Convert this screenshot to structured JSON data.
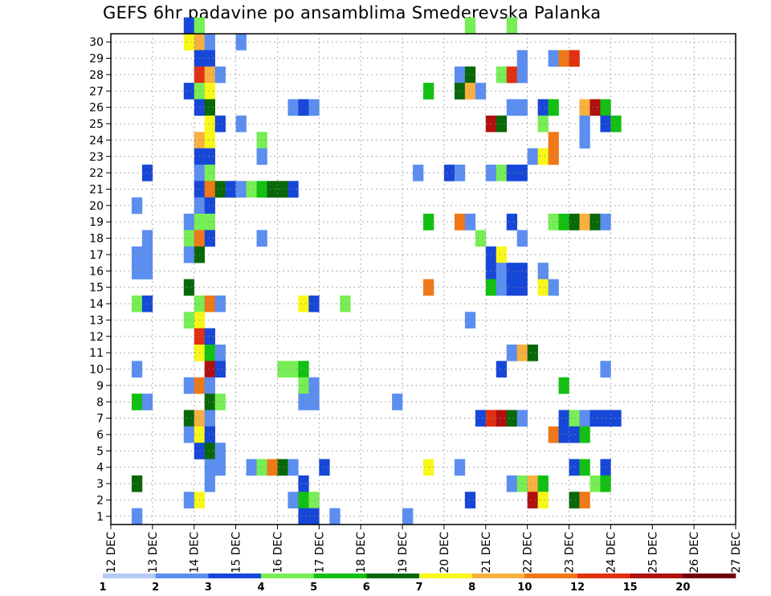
{
  "chart_data": {
    "type": "heatmap",
    "title": "GEFS 6hr padavine po ansamblima Smederevska Palanka",
    "xlabel": "",
    "ylabel": "",
    "x_tick_labels": [
      "12 DEC",
      "13 DEC",
      "14 DEC",
      "15 DEC",
      "16 DEC",
      "17 DEC",
      "18 DEC",
      "19 DEC",
      "20 DEC",
      "21 DEC",
      "22 DEC",
      "23 DEC",
      "24 DEC",
      "25 DEC",
      "26 DEC",
      "27 DEC"
    ],
    "y_tick_labels": [
      "1",
      "2",
      "3",
      "4",
      "5",
      "6",
      "7",
      "8",
      "9",
      "10",
      "11",
      "12",
      "13",
      "14",
      "15",
      "16",
      "17",
      "18",
      "19",
      "20",
      "21",
      "22",
      "23",
      "24",
      "25",
      "26",
      "27",
      "28",
      "29",
      "30"
    ],
    "x_unit": "6-hour step starting 12 DEC 00",
    "grid": true,
    "colorbar": {
      "position": "bottom",
      "tick_labels": [
        "1",
        "2",
        "3",
        "4",
        "5",
        "6",
        "7",
        "8",
        "10",
        "12",
        "15",
        "20"
      ],
      "levels": [
        1,
        2,
        3,
        4,
        5,
        6,
        7,
        8,
        10,
        12,
        15,
        20
      ],
      "colors": [
        "#b7c9f5",
        "#5b8ef0",
        "#1747d8",
        "#77ee55",
        "#11c011",
        "#086808",
        "#f8f818",
        "#f8b040",
        "#f07818",
        "#e03010",
        "#b01010",
        "#700010"
      ]
    },
    "cells": [
      [
        30,
        7,
        2
      ],
      [
        30,
        8,
        3
      ],
      [
        30,
        34,
        3
      ],
      [
        30,
        38,
        3
      ],
      [
        29,
        7,
        6
      ],
      [
        29,
        8,
        7
      ],
      [
        29,
        9,
        1
      ],
      [
        29,
        12,
        1
      ],
      [
        28,
        8,
        2
      ],
      [
        28,
        9,
        2
      ],
      [
        28,
        39,
        1
      ],
      [
        28,
        42,
        1
      ],
      [
        28,
        43,
        8
      ],
      [
        28,
        44,
        9
      ],
      [
        27,
        8,
        9
      ],
      [
        27,
        9,
        7
      ],
      [
        27,
        10,
        1
      ],
      [
        27,
        33,
        1
      ],
      [
        27,
        34,
        5
      ],
      [
        27,
        37,
        3
      ],
      [
        27,
        38,
        9
      ],
      [
        27,
        39,
        1
      ],
      [
        26,
        7,
        2
      ],
      [
        26,
        8,
        3
      ],
      [
        26,
        9,
        6
      ],
      [
        26,
        30,
        4
      ],
      [
        26,
        33,
        5
      ],
      [
        26,
        34,
        7
      ],
      [
        26,
        35,
        1
      ],
      [
        25,
        8,
        2
      ],
      [
        25,
        9,
        5
      ],
      [
        25,
        17,
        1
      ],
      [
        25,
        18,
        2
      ],
      [
        25,
        19,
        1
      ],
      [
        25,
        38,
        1
      ],
      [
        25,
        39,
        1
      ],
      [
        25,
        41,
        2
      ],
      [
        25,
        42,
        4
      ],
      [
        25,
        45,
        7
      ],
      [
        25,
        46,
        10
      ],
      [
        25,
        47,
        4
      ],
      [
        24,
        9,
        6
      ],
      [
        24,
        10,
        2
      ],
      [
        24,
        12,
        1
      ],
      [
        24,
        36,
        10
      ],
      [
        24,
        37,
        5
      ],
      [
        24,
        41,
        3
      ],
      [
        24,
        45,
        1
      ],
      [
        24,
        47,
        2
      ],
      [
        24,
        48,
        4
      ],
      [
        23,
        8,
        7
      ],
      [
        23,
        9,
        6
      ],
      [
        23,
        14,
        3
      ],
      [
        23,
        42,
        8
      ],
      [
        23,
        45,
        1
      ],
      [
        22,
        8,
        2
      ],
      [
        22,
        9,
        2
      ],
      [
        22,
        14,
        1
      ],
      [
        22,
        40,
        1
      ],
      [
        22,
        41,
        6
      ],
      [
        22,
        42,
        8
      ],
      [
        21,
        3,
        2
      ],
      [
        21,
        8,
        1
      ],
      [
        21,
        9,
        3
      ],
      [
        21,
        29,
        1
      ],
      [
        21,
        32,
        2
      ],
      [
        21,
        33,
        1
      ],
      [
        21,
        36,
        1
      ],
      [
        21,
        37,
        3
      ],
      [
        21,
        38,
        2
      ],
      [
        21,
        39,
        2
      ],
      [
        20,
        8,
        2
      ],
      [
        20,
        9,
        8
      ],
      [
        20,
        10,
        5
      ],
      [
        20,
        11,
        2
      ],
      [
        20,
        12,
        1
      ],
      [
        20,
        13,
        3
      ],
      [
        20,
        14,
        4
      ],
      [
        20,
        15,
        5
      ],
      [
        20,
        16,
        5
      ],
      [
        20,
        17,
        2
      ],
      [
        19,
        2,
        1
      ],
      [
        19,
        8,
        1
      ],
      [
        19,
        9,
        2
      ],
      [
        18,
        7,
        1
      ],
      [
        18,
        8,
        3
      ],
      [
        18,
        9,
        3
      ],
      [
        18,
        30,
        4
      ],
      [
        18,
        33,
        8
      ],
      [
        18,
        34,
        1
      ],
      [
        18,
        38,
        2
      ],
      [
        18,
        42,
        3
      ],
      [
        18,
        43,
        4
      ],
      [
        18,
        44,
        5
      ],
      [
        18,
        45,
        7
      ],
      [
        18,
        46,
        5
      ],
      [
        18,
        47,
        1
      ],
      [
        17,
        3,
        1
      ],
      [
        17,
        7,
        3
      ],
      [
        17,
        8,
        8
      ],
      [
        17,
        9,
        2
      ],
      [
        17,
        14,
        1
      ],
      [
        17,
        35,
        3
      ],
      [
        17,
        39,
        1
      ],
      [
        16,
        2,
        1
      ],
      [
        16,
        3,
        1
      ],
      [
        16,
        7,
        1
      ],
      [
        16,
        8,
        5
      ],
      [
        16,
        36,
        2
      ],
      [
        16,
        37,
        6
      ],
      [
        15,
        2,
        1
      ],
      [
        15,
        3,
        1
      ],
      [
        15,
        36,
        2
      ],
      [
        15,
        37,
        1
      ],
      [
        15,
        38,
        2
      ],
      [
        15,
        39,
        2
      ],
      [
        15,
        41,
        1
      ],
      [
        14,
        7,
        5
      ],
      [
        14,
        30,
        8
      ],
      [
        14,
        36,
        4
      ],
      [
        14,
        37,
        1
      ],
      [
        14,
        38,
        2
      ],
      [
        14,
        39,
        2
      ],
      [
        14,
        41,
        6
      ],
      [
        14,
        42,
        1
      ],
      [
        13,
        2,
        3
      ],
      [
        13,
        3,
        2
      ],
      [
        13,
        8,
        3
      ],
      [
        13,
        9,
        8
      ],
      [
        13,
        10,
        1
      ],
      [
        13,
        18,
        6
      ],
      [
        13,
        19,
        2
      ],
      [
        13,
        22,
        3
      ],
      [
        12,
        7,
        3
      ],
      [
        12,
        8,
        6
      ],
      [
        12,
        34,
        1
      ],
      [
        11,
        8,
        9
      ],
      [
        11,
        9,
        2
      ],
      [
        10,
        8,
        6
      ],
      [
        10,
        9,
        4
      ],
      [
        10,
        10,
        1
      ],
      [
        10,
        38,
        1
      ],
      [
        10,
        39,
        7
      ],
      [
        10,
        40,
        5
      ],
      [
        9,
        2,
        1
      ],
      [
        9,
        9,
        10
      ],
      [
        9,
        10,
        2
      ],
      [
        9,
        16,
        3
      ],
      [
        9,
        17,
        3
      ],
      [
        9,
        18,
        4
      ],
      [
        9,
        37,
        2
      ],
      [
        9,
        47,
        1
      ],
      [
        8,
        7,
        1
      ],
      [
        8,
        8,
        8
      ],
      [
        8,
        9,
        1
      ],
      [
        8,
        18,
        3
      ],
      [
        8,
        19,
        1
      ],
      [
        8,
        43,
        4
      ],
      [
        7,
        2,
        4
      ],
      [
        7,
        3,
        1
      ],
      [
        7,
        9,
        5
      ],
      [
        7,
        10,
        3
      ],
      [
        7,
        18,
        1
      ],
      [
        7,
        19,
        1
      ],
      [
        7,
        27,
        1
      ],
      [
        6,
        7,
        5
      ],
      [
        6,
        8,
        7
      ],
      [
        6,
        9,
        1
      ],
      [
        6,
        35,
        2
      ],
      [
        6,
        36,
        9
      ],
      [
        6,
        37,
        10
      ],
      [
        6,
        38,
        5
      ],
      [
        6,
        39,
        1
      ],
      [
        6,
        43,
        2
      ],
      [
        6,
        44,
        3
      ],
      [
        6,
        45,
        1
      ],
      [
        6,
        46,
        2
      ],
      [
        6,
        47,
        2
      ],
      [
        6,
        48,
        2
      ],
      [
        5,
        7,
        1
      ],
      [
        5,
        8,
        6
      ],
      [
        5,
        9,
        2
      ],
      [
        5,
        42,
        8
      ],
      [
        5,
        43,
        2
      ],
      [
        5,
        44,
        2
      ],
      [
        5,
        45,
        4
      ],
      [
        4,
        8,
        2
      ],
      [
        4,
        9,
        5
      ],
      [
        4,
        10,
        1
      ],
      [
        3,
        9,
        1
      ],
      [
        3,
        10,
        1
      ],
      [
        3,
        13,
        1
      ],
      [
        3,
        14,
        3
      ],
      [
        3,
        15,
        8
      ],
      [
        3,
        16,
        5
      ],
      [
        3,
        17,
        1
      ],
      [
        3,
        20,
        2
      ],
      [
        3,
        30,
        6
      ],
      [
        3,
        33,
        1
      ],
      [
        3,
        44,
        2
      ],
      [
        3,
        45,
        4
      ],
      [
        3,
        47,
        2
      ],
      [
        2,
        2,
        5
      ],
      [
        2,
        9,
        1
      ],
      [
        2,
        18,
        2
      ],
      [
        2,
        38,
        1
      ],
      [
        2,
        39,
        3
      ],
      [
        2,
        40,
        7
      ],
      [
        2,
        41,
        4
      ],
      [
        2,
        46,
        3
      ],
      [
        2,
        47,
        4
      ],
      [
        1,
        7,
        1
      ],
      [
        1,
        8,
        6
      ],
      [
        1,
        17,
        1
      ],
      [
        1,
        18,
        4
      ],
      [
        1,
        19,
        3
      ],
      [
        1,
        34,
        2
      ],
      [
        1,
        40,
        10
      ],
      [
        1,
        41,
        6
      ],
      [
        1,
        44,
        5
      ],
      [
        1,
        45,
        8
      ],
      [
        0,
        2,
        1
      ],
      [
        0,
        18,
        2
      ],
      [
        0,
        19,
        2
      ],
      [
        0,
        21,
        1
      ],
      [
        0,
        28,
        1
      ]
    ]
  }
}
